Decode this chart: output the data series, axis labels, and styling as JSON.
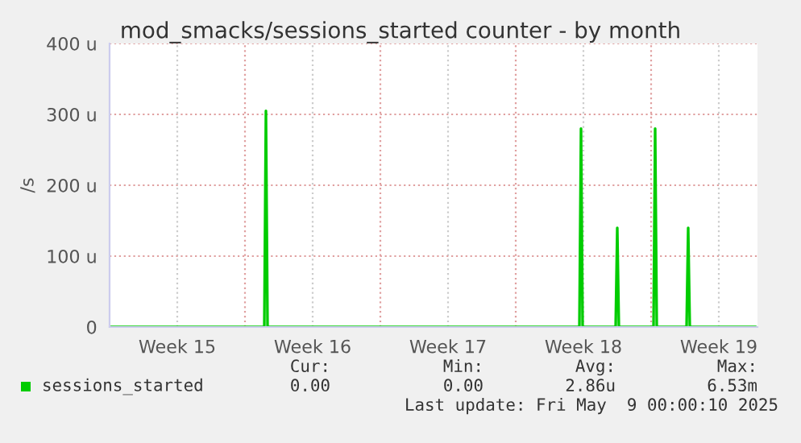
{
  "chart_data": {
    "type": "line",
    "title": "mod_smacks/sessions_started counter - by month",
    "ylabel": "/s",
    "series": [
      {
        "name": "sessions_started",
        "color": "#00cc00",
        "x": [
          "2025-04-07T00:00",
          "2025-04-15T00:00",
          "2025-04-15T02:00",
          "2025-04-15T04:00",
          "2025-05-01T07:00",
          "2025-05-01T09:00",
          "2025-05-01T11:00",
          "2025-05-03T04:00",
          "2025-05-03T06:00",
          "2025-05-03T08:00",
          "2025-05-05T03:00",
          "2025-05-05T05:00",
          "2025-05-05T07:00",
          "2025-05-06T20:00",
          "2025-05-06T22:00",
          "2025-05-07T00:00",
          "2025-05-10T10:00"
        ],
        "values": [
          0,
          0,
          305,
          0,
          0,
          280,
          0,
          0,
          140,
          0,
          0,
          280,
          0,
          0,
          140,
          0,
          0
        ]
      }
    ],
    "xlim": [
      "2025-04-07T00:00",
      "2025-05-10T12:00"
    ],
    "xticks": [
      {
        "value": "2025-04-10T12:00",
        "label": "Week 15"
      },
      {
        "value": "2025-04-14",
        "label": null
      },
      {
        "value": "2025-04-17T12:00",
        "label": "Week 16"
      },
      {
        "value": "2025-04-21",
        "label": null
      },
      {
        "value": "2025-04-24T12:00",
        "label": "Week 17"
      },
      {
        "value": "2025-04-28",
        "label": null
      },
      {
        "value": "2025-05-01T12:00",
        "label": "Week 18"
      },
      {
        "value": "2025-05-05",
        "label": null
      },
      {
        "value": "2025-05-08T12:00",
        "label": "Week 19"
      }
    ],
    "ylim": [
      0,
      400
    ],
    "yticks": [
      0,
      {
        "value": 100,
        "label": "100 u"
      },
      {
        "value": 200,
        "label": "200 u"
      },
      {
        "value": 300,
        "label": "300 u"
      },
      {
        "value": 400,
        "label": "400 u"
      }
    ],
    "grid": true,
    "legend": "bottom left",
    "line_style": "solid",
    "marker": "none",
    "annotations": [
      "Cur:",
      "0.00",
      "Min:",
      "0.00",
      "Avg:",
      "2.86u",
      "Max:",
      "6.53m",
      "Last update: Fri May  9 00:00:10 2025"
    ]
  }
}
